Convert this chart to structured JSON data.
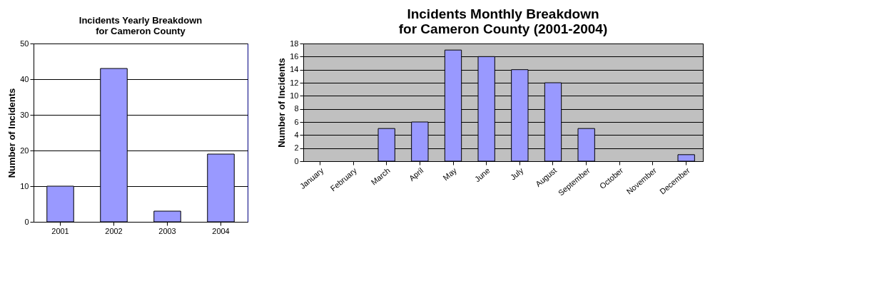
{
  "chart_data": [
    {
      "type": "bar",
      "title": "Incidents Yearly Breakdown\nfor Cameron County",
      "ylabel": "Number of Incidents",
      "categories": [
        "2001",
        "2002",
        "2003",
        "2004"
      ],
      "values": [
        10,
        43,
        3,
        19
      ],
      "color": "#9999ff",
      "ylim": [
        0,
        50
      ],
      "yticks": [
        0,
        10,
        20,
        30,
        40,
        50
      ],
      "grid": "y"
    },
    {
      "type": "bar",
      "title": "Incidents Monthly Breakdown\nfor Cameron County (2001-2004)",
      "ylabel": "Number of Incidents",
      "categories": [
        "January",
        "February",
        "March",
        "April",
        "May",
        "June",
        "July",
        "August",
        "September",
        "October",
        "November",
        "December"
      ],
      "values": [
        0,
        0,
        5,
        6,
        17,
        16,
        14,
        12,
        5,
        0,
        0,
        1
      ],
      "color": "#9999ff",
      "ylim": [
        0,
        18
      ],
      "yticks": [
        0,
        2,
        4,
        6,
        8,
        10,
        12,
        14,
        16,
        18
      ],
      "grid": "y"
    }
  ]
}
